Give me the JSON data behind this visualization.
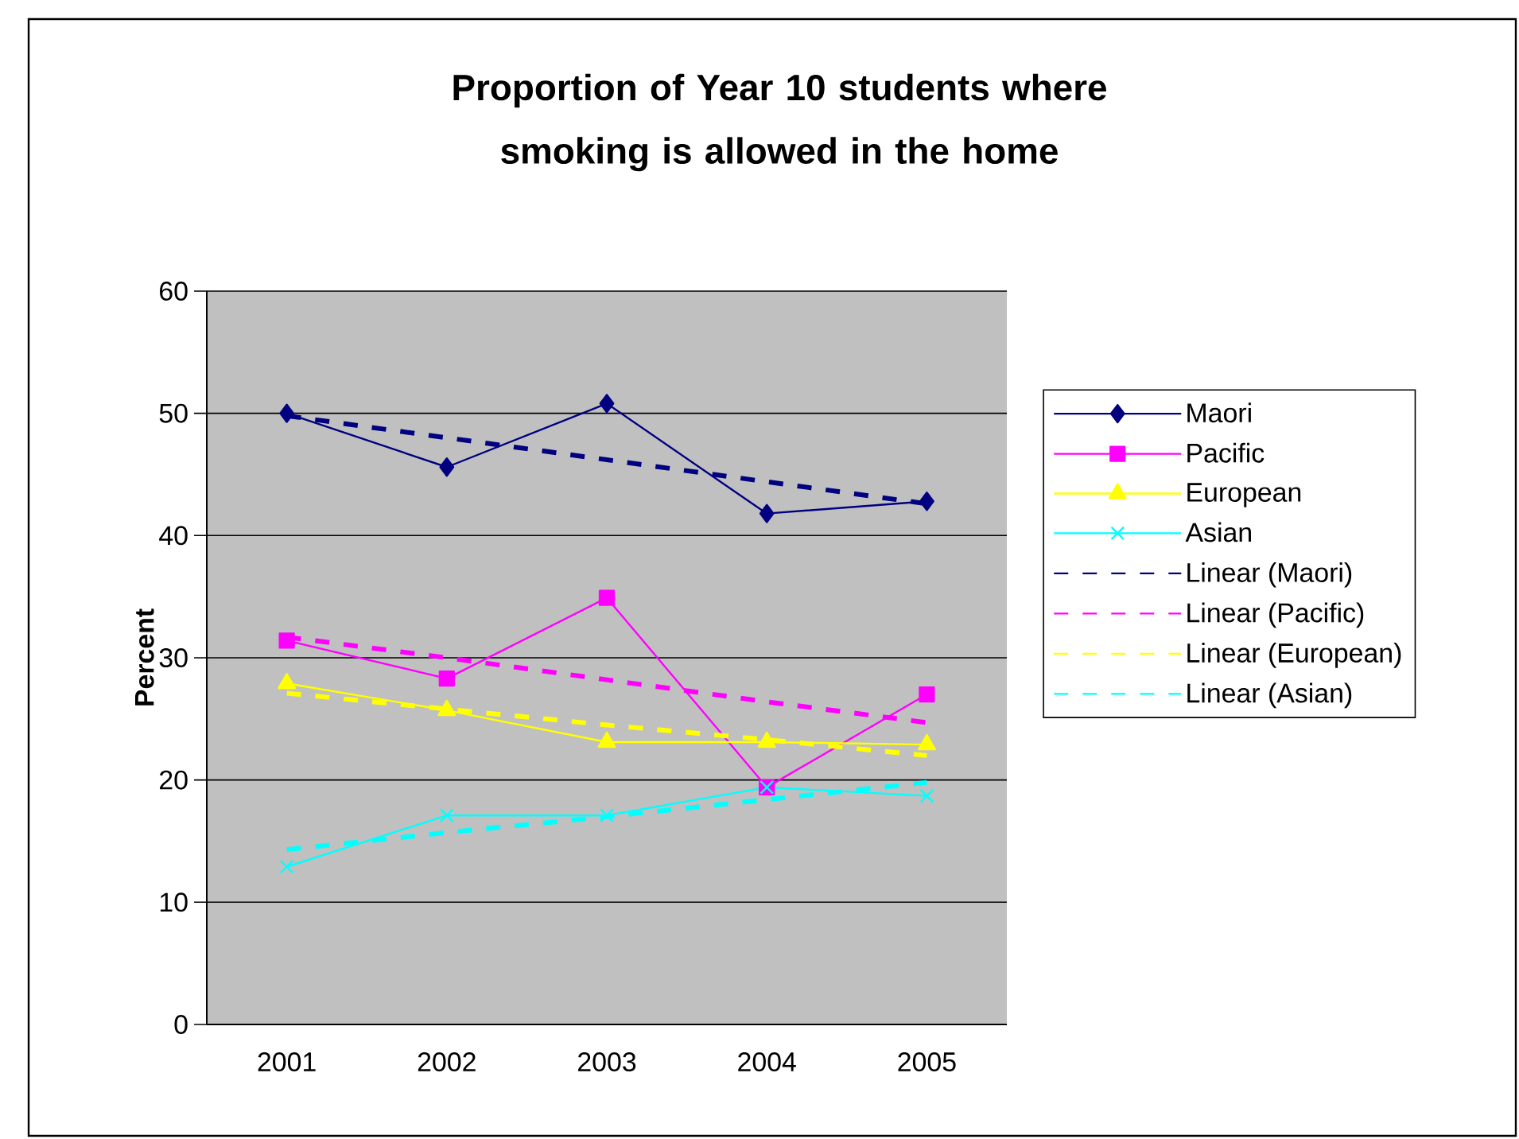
{
  "chart_data": {
    "type": "line",
    "title": "Proportion of Year 10 students where smoking is allowed in the home",
    "ylabel": "Percent",
    "x": [
      2001,
      2002,
      2003,
      2004,
      2005
    ],
    "xlim": [
      2000.5,
      2005.5
    ],
    "xticks": [
      2001,
      2002,
      2003,
      2004,
      2005
    ],
    "ylim": [
      0,
      60
    ],
    "yticks": [
      0,
      10,
      20,
      30,
      40,
      50,
      60
    ],
    "grid": "y",
    "legend": "right",
    "series": [
      {
        "name": "Maori",
        "color": "#000080",
        "marker": "diamond",
        "line_style": "solid",
        "values": [
          50.0,
          45.6,
          50.8,
          41.8,
          42.8
        ]
      },
      {
        "name": "Pacific",
        "color": "#ff00ff",
        "marker": "square",
        "line_style": "solid",
        "values": [
          31.4,
          28.3,
          34.9,
          19.4,
          27.0
        ]
      },
      {
        "name": "European",
        "color": "#ffff00",
        "marker": "triangle",
        "line_style": "solid",
        "values": [
          27.9,
          25.7,
          23.1,
          23.1,
          22.9
        ]
      },
      {
        "name": "Asian",
        "color": "#00ffff",
        "marker": "cross",
        "line_style": "solid",
        "values": [
          12.9,
          17.1,
          17.1,
          19.4,
          18.7
        ]
      },
      {
        "name": "Linear (Maori)",
        "color": "#000080",
        "marker": "none",
        "line_style": "dashed",
        "values": [
          49.8,
          48.0,
          46.2,
          44.4,
          42.6
        ]
      },
      {
        "name": "Linear (Pacific)",
        "color": "#ff00ff",
        "marker": "none",
        "line_style": "dashed",
        "values": [
          31.7,
          30.0,
          28.2,
          26.4,
          24.7
        ]
      },
      {
        "name": "Linear (European)",
        "color": "#ffff00",
        "marker": "none",
        "line_style": "dashed",
        "values": [
          27.1,
          25.8,
          24.5,
          23.3,
          22.0
        ]
      },
      {
        "name": "Linear (Asian)",
        "color": "#00ffff",
        "marker": "none",
        "line_style": "dashed",
        "values": [
          14.3,
          15.7,
          17.0,
          18.4,
          19.8
        ]
      }
    ]
  }
}
